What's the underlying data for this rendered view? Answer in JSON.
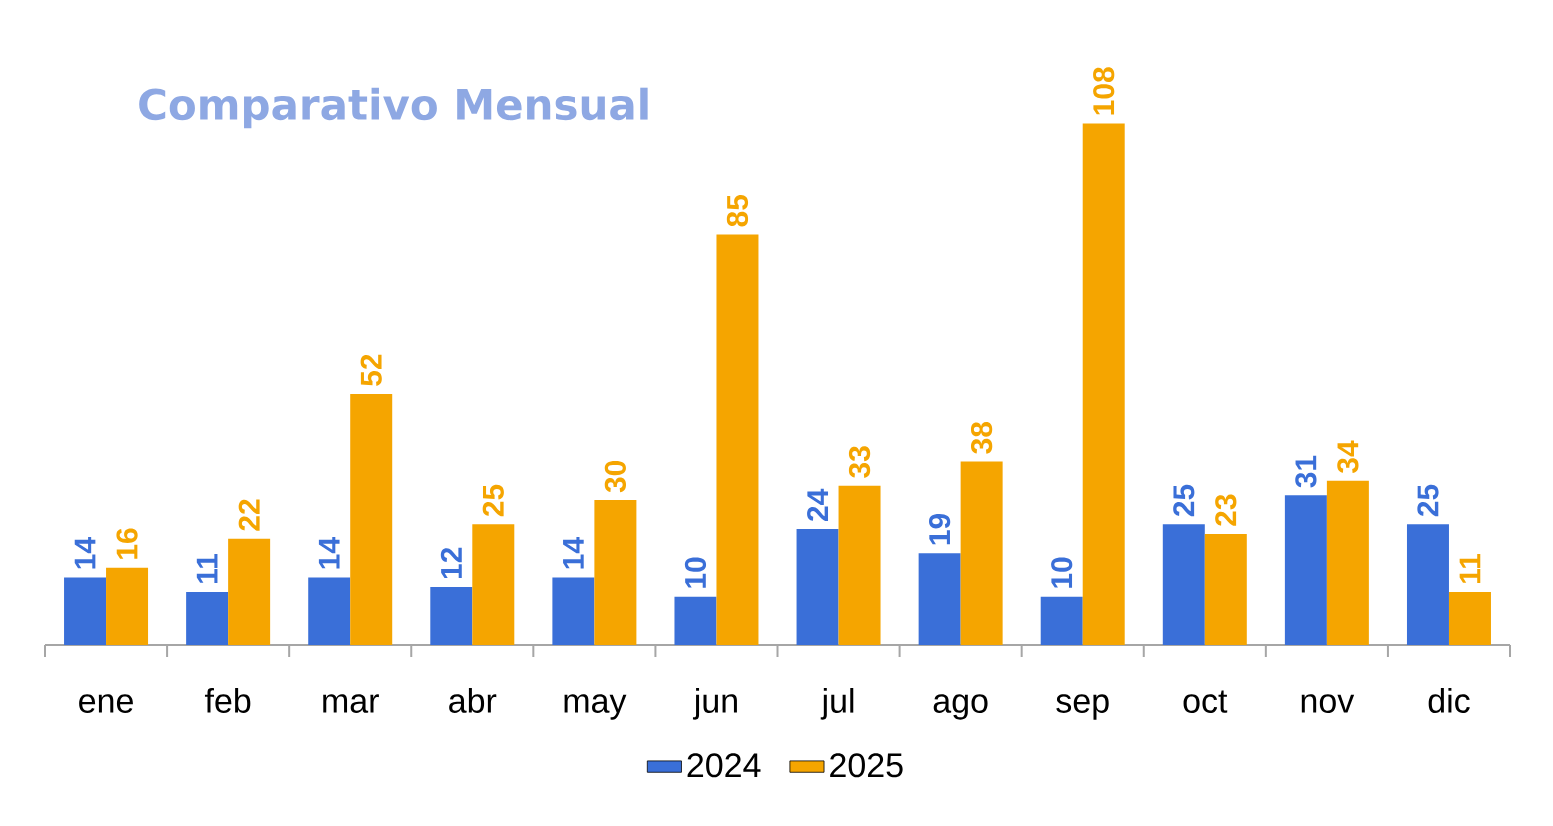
{
  "chart_data": {
    "type": "bar",
    "title": "Comparativo Mensual",
    "categories": [
      "ene",
      "feb",
      "mar",
      "abr",
      "may",
      "jun",
      "jul",
      "ago",
      "sep",
      "oct",
      "nov",
      "dic"
    ],
    "series": [
      {
        "name": "2024",
        "color": "#3a6fd8",
        "values": [
          14,
          11,
          14,
          12,
          14,
          10,
          24,
          19,
          10,
          25,
          31,
          25
        ]
      },
      {
        "name": "2025",
        "color": "#f5a500",
        "values": [
          16,
          22,
          52,
          25,
          30,
          85,
          33,
          38,
          108,
          23,
          34,
          11
        ]
      }
    ],
    "data_labels": true,
    "legend": "bottom"
  }
}
